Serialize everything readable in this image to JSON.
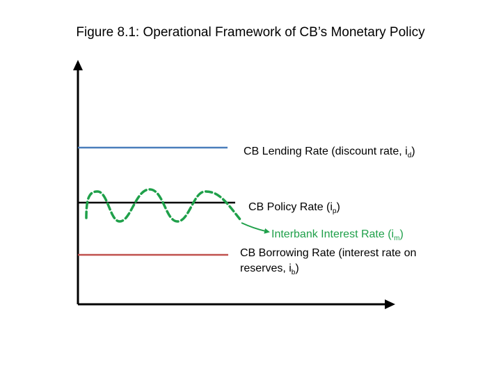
{
  "title": "Figure 8.1: Operational Framework of CB’s Monetary Policy",
  "colors": {
    "axis": "#000000",
    "lending_line": "#4a7ebb",
    "policy_line": "#000000",
    "borrowing_line": "#c0504d",
    "interbank_curve": "#1fa04a"
  },
  "labels": {
    "lending": {
      "text": "CB Lending Rate (discount rate, i",
      "sub": "d",
      "close": ")"
    },
    "policy": {
      "text": "CB Policy Rate  (i",
      "sub": "p",
      "close": ")"
    },
    "interbank": {
      "text": "Interbank Interest Rate (i",
      "sub": "m",
      "close": ")"
    },
    "borrowing": {
      "text": "CB Borrowing Rate (interest rate on reserves, i",
      "sub": "b",
      "close": ")"
    }
  }
}
